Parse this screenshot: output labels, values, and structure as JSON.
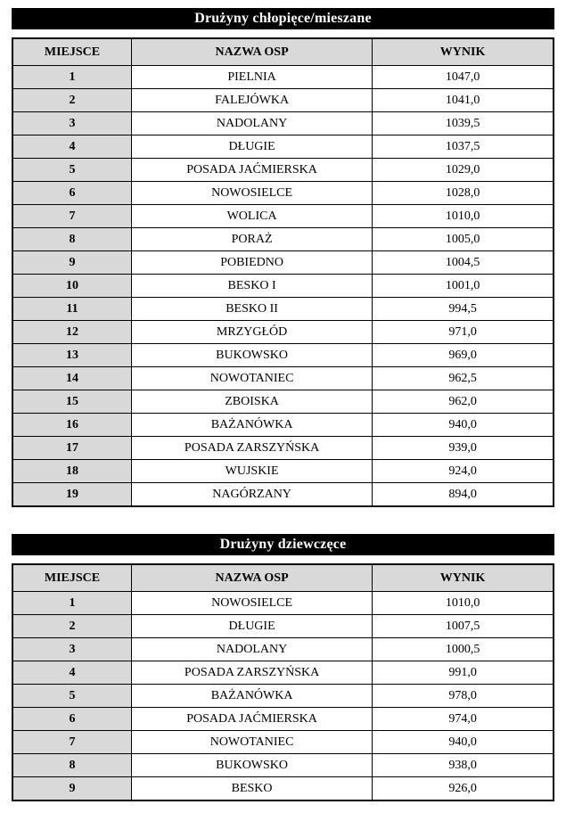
{
  "colors": {
    "banner_bg": "#000000",
    "banner_text": "#ffffff",
    "header_bg": "#d9d9d9",
    "border": "#000000",
    "page_bg": "#ffffff"
  },
  "tables": [
    {
      "type": "table",
      "title": "Drużyny chłopięce/mieszane",
      "columns": [
        "MIEJSCE",
        "NAZWA OSP",
        "WYNIK"
      ],
      "rows": [
        {
          "place": "1",
          "name": "PIELNIA",
          "score": "1047,0"
        },
        {
          "place": "2",
          "name": "FALEJÓWKA",
          "score": "1041,0"
        },
        {
          "place": "3",
          "name": "NADOLANY",
          "score": "1039,5"
        },
        {
          "place": "4",
          "name": "DŁUGIE",
          "score": "1037,5"
        },
        {
          "place": "5",
          "name": "POSADA JAĆMIERSKA",
          "score": "1029,0"
        },
        {
          "place": "6",
          "name": "NOWOSIELCE",
          "score": "1028,0"
        },
        {
          "place": "7",
          "name": "WOLICA",
          "score": "1010,0"
        },
        {
          "place": "8",
          "name": "PORAŻ",
          "score": "1005,0"
        },
        {
          "place": "9",
          "name": "POBIEDNO",
          "score": "1004,5"
        },
        {
          "place": "10",
          "name": "BESKO I",
          "score": "1001,0"
        },
        {
          "place": "11",
          "name": "BESKO II",
          "score": "994,5"
        },
        {
          "place": "12",
          "name": "MRZYGŁÓD",
          "score": "971,0"
        },
        {
          "place": "13",
          "name": "BUKOWSKO",
          "score": "969,0"
        },
        {
          "place": "14",
          "name": "NOWOTANIEC",
          "score": "962,5"
        },
        {
          "place": "15",
          "name": "ZBOISKA",
          "score": "962,0"
        },
        {
          "place": "16",
          "name": "BAŻANÓWKA",
          "score": "940,0"
        },
        {
          "place": "17",
          "name": "POSADA ZARSZYŃSKA",
          "score": "939,0"
        },
        {
          "place": "18",
          "name": "WUJSKIE",
          "score": "924,0"
        },
        {
          "place": "19",
          "name": "NAGÓRZANY",
          "score": "894,0"
        }
      ]
    },
    {
      "type": "table",
      "title": "Drużyny dziewczęce",
      "columns": [
        "MIEJSCE",
        "NAZWA OSP",
        "WYNIK"
      ],
      "rows": [
        {
          "place": "1",
          "name": "NOWOSIELCE",
          "score": "1010,0"
        },
        {
          "place": "2",
          "name": "DŁUGIE",
          "score": "1007,5"
        },
        {
          "place": "3",
          "name": "NADOLANY",
          "score": "1000,5"
        },
        {
          "place": "4",
          "name": "POSADA ZARSZYŃSKA",
          "score": "991,0"
        },
        {
          "place": "5",
          "name": "BAŻANÓWKA",
          "score": "978,0"
        },
        {
          "place": "6",
          "name": "POSADA JAĆMIERSKA",
          "score": "974,0"
        },
        {
          "place": "7",
          "name": "NOWOTANIEC",
          "score": "940,0"
        },
        {
          "place": "8",
          "name": "BUKOWSKO",
          "score": "938,0"
        },
        {
          "place": "9",
          "name": "BESKO",
          "score": "926,0"
        }
      ]
    }
  ]
}
